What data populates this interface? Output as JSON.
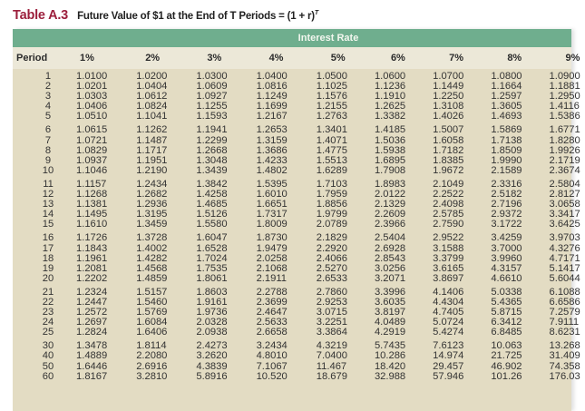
{
  "title": {
    "label": "Table A.3",
    "text": "Future Value of $1 at the End of T Periods = (1 + r)",
    "exponent": "T"
  },
  "table": {
    "band_label": "Interest Rate",
    "period_header": "Period",
    "rate_headers": [
      "1%",
      "2%",
      "3%",
      "4%",
      "5%",
      "6%",
      "7%",
      "8%",
      "9%"
    ],
    "groups": [
      [
        {
          "period": "1",
          "values": [
            "1.0100",
            "1.0200",
            "1.0300",
            "1.0400",
            "1.0500",
            "1.0600",
            "1.0700",
            "1.0800",
            "1.0900"
          ]
        },
        {
          "period": "2",
          "values": [
            "1.0201",
            "1.0404",
            "1.0609",
            "1.0816",
            "1.1025",
            "1.1236",
            "1.1449",
            "1.1664",
            "1.1881"
          ]
        },
        {
          "period": "3",
          "values": [
            "1.0303",
            "1.0612",
            "1.0927",
            "1.1249",
            "1.1576",
            "1.1910",
            "1.2250",
            "1.2597",
            "1.2950"
          ]
        },
        {
          "period": "4",
          "values": [
            "1.0406",
            "1.0824",
            "1.1255",
            "1.1699",
            "1.2155",
            "1.2625",
            "1.3108",
            "1.3605",
            "1.4116"
          ]
        },
        {
          "period": "5",
          "values": [
            "1.0510",
            "1.1041",
            "1.1593",
            "1.2167",
            "1.2763",
            "1.3382",
            "1.4026",
            "1.4693",
            "1.5386"
          ]
        }
      ],
      [
        {
          "period": "6",
          "values": [
            "1.0615",
            "1.1262",
            "1.1941",
            "1.2653",
            "1.3401",
            "1.4185",
            "1.5007",
            "1.5869",
            "1.6771"
          ]
        },
        {
          "period": "7",
          "values": [
            "1.0721",
            "1.1487",
            "1.2299",
            "1.3159",
            "1.4071",
            "1.5036",
            "1.6058",
            "1.7138",
            "1.8280"
          ]
        },
        {
          "period": "8",
          "values": [
            "1.0829",
            "1.1717",
            "1.2668",
            "1.3686",
            "1.4775",
            "1.5938",
            "1.7182",
            "1.8509",
            "1.9926"
          ]
        },
        {
          "period": "9",
          "values": [
            "1.0937",
            "1.1951",
            "1.3048",
            "1.4233",
            "1.5513",
            "1.6895",
            "1.8385",
            "1.9990",
            "2.1719"
          ]
        },
        {
          "period": "10",
          "values": [
            "1.1046",
            "1.2190",
            "1.3439",
            "1.4802",
            "1.6289",
            "1.7908",
            "1.9672",
            "2.1589",
            "2.3674"
          ]
        }
      ],
      [
        {
          "period": "11",
          "values": [
            "1.1157",
            "1.2434",
            "1.3842",
            "1.5395",
            "1.7103",
            "1.8983",
            "2.1049",
            "2.3316",
            "2.5804"
          ]
        },
        {
          "period": "12",
          "values": [
            "1.1268",
            "1.2682",
            "1.4258",
            "1.6010",
            "1.7959",
            "2.0122",
            "2.2522",
            "2.5182",
            "2.8127"
          ]
        },
        {
          "period": "13",
          "values": [
            "1.1381",
            "1.2936",
            "1.4685",
            "1.6651",
            "1.8856",
            "2.1329",
            "2.4098",
            "2.7196",
            "3.0658"
          ]
        },
        {
          "period": "14",
          "values": [
            "1.1495",
            "1.3195",
            "1.5126",
            "1.7317",
            "1.9799",
            "2.2609",
            "2.5785",
            "2.9372",
            "3.3417"
          ]
        },
        {
          "period": "15",
          "values": [
            "1.1610",
            "1.3459",
            "1.5580",
            "1.8009",
            "2.0789",
            "2.3966",
            "2.7590",
            "3.1722",
            "3.6425"
          ]
        }
      ],
      [
        {
          "period": "16",
          "values": [
            "1.1726",
            "1.3728",
            "1.6047",
            "1.8730",
            "2.1829",
            "2.5404",
            "2.9522",
            "3.4259",
            "3.9703"
          ]
        },
        {
          "period": "17",
          "values": [
            "1.1843",
            "1.4002",
            "1.6528",
            "1.9479",
            "2.2920",
            "2.6928",
            "3.1588",
            "3.7000",
            "4.3276"
          ]
        },
        {
          "period": "18",
          "values": [
            "1.1961",
            "1.4282",
            "1.7024",
            "2.0258",
            "2.4066",
            "2.8543",
            "3.3799",
            "3.9960",
            "4.7171"
          ]
        },
        {
          "period": "19",
          "values": [
            "1.2081",
            "1.4568",
            "1.7535",
            "2.1068",
            "2.5270",
            "3.0256",
            "3.6165",
            "4.3157",
            "5.1417"
          ]
        },
        {
          "period": "20",
          "values": [
            "1.2202",
            "1.4859",
            "1.8061",
            "2.1911",
            "2.6533",
            "3.2071",
            "3.8697",
            "4.6610",
            "5.6044"
          ]
        }
      ],
      [
        {
          "period": "21",
          "values": [
            "1.2324",
            "1.5157",
            "1.8603",
            "2.2788",
            "2.7860",
            "3.3996",
            "4.1406",
            "5.0338",
            "6.1088"
          ]
        },
        {
          "period": "22",
          "values": [
            "1.2447",
            "1.5460",
            "1.9161",
            "2.3699",
            "2.9253",
            "3.6035",
            "4.4304",
            "5.4365",
            "6.6586"
          ]
        },
        {
          "period": "23",
          "values": [
            "1.2572",
            "1.5769",
            "1.9736",
            "2.4647",
            "3.0715",
            "3.8197",
            "4.7405",
            "5.8715",
            "7.2579"
          ]
        },
        {
          "period": "24",
          "values": [
            "1.2697",
            "1.6084",
            "2.0328",
            "2.5633",
            "3.2251",
            "4.0489",
            "5.0724",
            "6.3412",
            "7.9111"
          ]
        },
        {
          "period": "25",
          "values": [
            "1.2824",
            "1.6406",
            "2.0938",
            "2.6658",
            "3.3864",
            "4.2919",
            "5.4274",
            "6.8485",
            "8.6231"
          ]
        }
      ],
      [
        {
          "period": "30",
          "values": [
            "1.3478",
            "1.8114",
            "2.4273",
            "3.2434",
            "4.3219",
            "5.7435",
            "7.6123",
            "10.063",
            "13.268"
          ]
        },
        {
          "period": "40",
          "values": [
            "1.4889",
            "2.2080",
            "3.2620",
            "4.8010",
            "7.0400",
            "10.286",
            "14.974",
            "21.725",
            "31.409"
          ]
        },
        {
          "period": "50",
          "values": [
            "1.6446",
            "2.6916",
            "4.3839",
            "7.1067",
            "11.467",
            "18.420",
            "29.457",
            "46.902",
            "74.358"
          ]
        },
        {
          "period": "60",
          "values": [
            "1.8167",
            "3.2810",
            "5.8916",
            "10.520",
            "18.679",
            "32.988",
            "57.946",
            "101.26",
            "176.03"
          ]
        }
      ]
    ]
  },
  "colors": {
    "title_label": "#9c1f3c",
    "band": "#6fae8e",
    "header_row": "#ece8d8",
    "body": "#e3dcc3"
  }
}
